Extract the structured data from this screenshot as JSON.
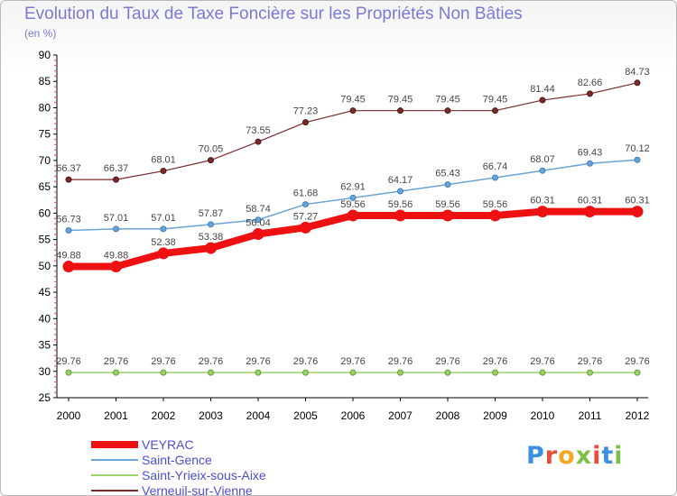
{
  "header": {
    "title": "Evolution du Taux de Taxe Foncière sur les Propriétés Non Bâties",
    "subtitle": "(en %)"
  },
  "logo": {
    "text": "Proxiti",
    "letter_colors": [
      "#3a8fe0",
      "#e74c3c",
      "#f5a623",
      "#7cc242",
      "#e74c3c",
      "#3a8fe0",
      "#7cc242"
    ]
  },
  "chart_data": {
    "type": "line",
    "title": "Evolution du Taux de Taxe Foncière sur les Propriétés Non Bâties",
    "ylabel": "(en %)",
    "xlabel": "",
    "ylim": [
      25,
      90
    ],
    "yticks": [
      25,
      30,
      35,
      40,
      45,
      50,
      55,
      60,
      65,
      70,
      75,
      80,
      85,
      90
    ],
    "categories": [
      "2000",
      "2001",
      "2002",
      "2003",
      "2004",
      "2005",
      "2006",
      "2007",
      "2008",
      "2009",
      "2010",
      "2011",
      "2012"
    ],
    "grid": false,
    "legend_position": "bottom-left",
    "series": [
      {
        "name": "VEYRAC",
        "color": "#ee1111",
        "values": [
          49.88,
          49.88,
          52.38,
          53.38,
          56.04,
          57.27,
          59.56,
          59.56,
          59.56,
          59.56,
          60.31,
          60.31,
          60.31
        ],
        "labels": [
          "49.88",
          "49.88",
          "52.38",
          "53.38",
          "56.04",
          "57.27",
          "59.56",
          "59.56",
          "59.56",
          "59.56",
          "60.31",
          "60.31",
          "60.31"
        ]
      },
      {
        "name": "Saint-Gence",
        "color": "#6aa3d5",
        "values": [
          56.73,
          57.01,
          57.01,
          57.87,
          58.74,
          61.68,
          62.91,
          64.17,
          65.43,
          66.74,
          68.07,
          69.43,
          70.12
        ],
        "labels": [
          "56.73",
          "57.01",
          "57.01",
          "57.87",
          "58.74",
          "61.68",
          "62.91",
          "64.17",
          "65.43",
          "66.74",
          "68.07",
          "69.43",
          "70.12"
        ]
      },
      {
        "name": "Saint-Yrieix-sous-Aixe",
        "color": "#99d26a",
        "values": [
          29.76,
          29.76,
          29.76,
          29.76,
          29.76,
          29.76,
          29.76,
          29.76,
          29.76,
          29.76,
          29.76,
          29.76,
          29.76
        ],
        "labels": [
          "29.76",
          "29.76",
          "29.76",
          "29.76",
          "29.76",
          "29.76",
          "29.76",
          "29.76",
          "29.76",
          "29.76",
          "29.76",
          "29.76",
          "29.76"
        ]
      },
      {
        "name": "Verneuil-sur-Vienne",
        "color": "#7b2a2a",
        "values": [
          66.37,
          66.37,
          68.01,
          70.05,
          73.55,
          77.23,
          79.45,
          79.45,
          79.45,
          79.45,
          81.44,
          82.66,
          84.73
        ],
        "labels": [
          "66.37",
          "66.37",
          "68.01",
          "70.05",
          "73.55",
          "77.23",
          "79.45",
          "79.45",
          "79.45",
          "79.45",
          "81.44",
          "82.66",
          "84.73"
        ]
      }
    ]
  }
}
